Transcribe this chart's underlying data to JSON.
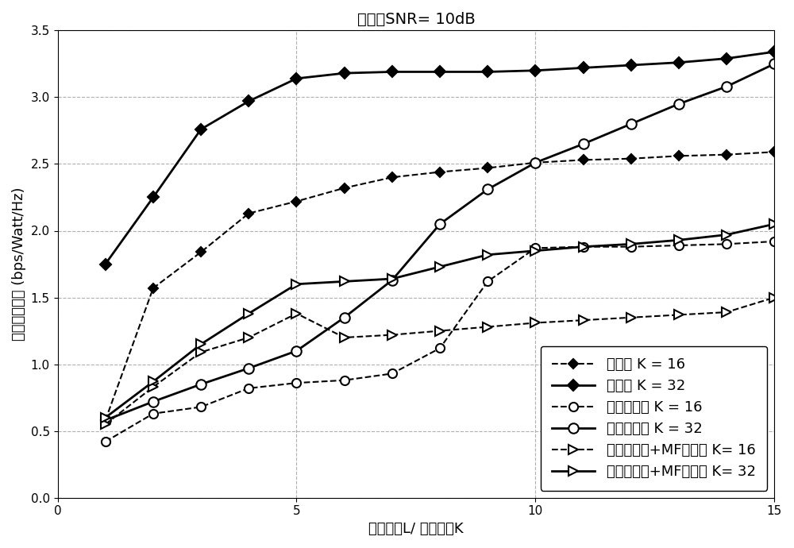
{
  "title": "信噪比SNR= 10dB",
  "xlabel": "天线数盪L/ 用户数盪K",
  "ylabel": "系统能量效率 (bps/Watt/Hz)",
  "xlim": [
    0,
    15
  ],
  "ylim": [
    0,
    3.5
  ],
  "xticks": [
    0,
    5,
    10,
    15
  ],
  "yticks": [
    0,
    0.5,
    1.0,
    1.5,
    2.0,
    2.5,
    3.0,
    3.5
  ],
  "x": [
    1,
    2,
    3,
    4,
    5,
    6,
    7,
    8,
    9,
    10,
    11,
    12,
    13,
    14,
    15
  ],
  "series": [
    {
      "label": "本发明 K = 16",
      "style": "dashed",
      "color": "#000000",
      "marker": "D",
      "markersize": 6,
      "linewidth": 1.5,
      "markerfilled": true,
      "y": [
        0.58,
        1.57,
        1.84,
        2.13,
        2.22,
        2.32,
        2.4,
        2.44,
        2.47,
        2.51,
        2.53,
        2.54,
        2.56,
        2.57,
        2.59
      ]
    },
    {
      "label": "本发明 K = 32",
      "style": "solid",
      "color": "#000000",
      "marker": "D",
      "markersize": 7,
      "linewidth": 2.0,
      "markerfilled": true,
      "y": [
        1.75,
        2.25,
        2.76,
        2.97,
        3.14,
        3.18,
        3.19,
        3.19,
        3.19,
        3.2,
        3.22,
        3.24,
        3.26,
        3.29,
        3.34
      ]
    },
    {
      "label": "天线有重叠 K = 16",
      "style": "dashed",
      "color": "#000000",
      "marker": "o",
      "markersize": 8,
      "linewidth": 1.5,
      "markerfilled": false,
      "y": [
        0.42,
        0.63,
        0.68,
        0.82,
        0.86,
        0.88,
        0.93,
        1.12,
        1.62,
        1.87,
        1.88,
        1.88,
        1.89,
        1.9,
        1.92
      ]
    },
    {
      "label": "天线有重叠 K = 32",
      "style": "solid",
      "color": "#000000",
      "marker": "o",
      "markersize": 9,
      "linewidth": 2.0,
      "markerfilled": false,
      "y": [
        0.58,
        0.72,
        0.85,
        0.97,
        1.1,
        1.35,
        1.63,
        2.05,
        2.31,
        2.51,
        2.65,
        2.8,
        2.95,
        3.08,
        3.25
      ]
    },
    {
      "label": "天线无重叠+MF预编码 K= 16",
      "style": "dashed",
      "color": "#000000",
      "marker": ">",
      "markersize": 8,
      "linewidth": 1.5,
      "markerfilled": false,
      "y": [
        0.55,
        0.83,
        1.09,
        1.2,
        1.38,
        1.2,
        1.22,
        1.25,
        1.28,
        1.31,
        1.33,
        1.35,
        1.37,
        1.39,
        1.5
      ]
    },
    {
      "label": "天线无重叠+MF预编码 K= 32",
      "style": "solid",
      "color": "#000000",
      "marker": ">",
      "markersize": 9,
      "linewidth": 2.0,
      "markerfilled": false,
      "y": [
        0.6,
        0.87,
        1.15,
        1.38,
        1.6,
        1.62,
        1.64,
        1.73,
        1.82,
        1.85,
        1.88,
        1.9,
        1.93,
        1.97,
        2.05
      ]
    }
  ],
  "background_color": "#ffffff",
  "grid_color": "#b0b0b0"
}
